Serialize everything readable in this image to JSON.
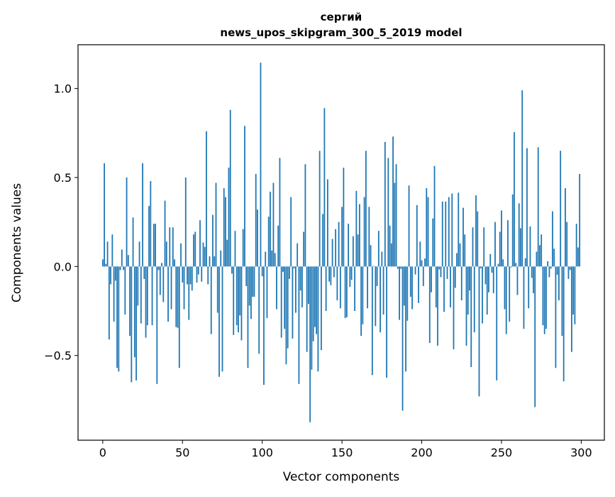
{
  "chart_data": {
    "type": "bar",
    "title": [
      "сергий",
      "news_upos_skipgram_300_5_2019 model"
    ],
    "xlabel": "Vector components",
    "ylabel": "Components values",
    "xlim": [
      -15.5,
      314.5
    ],
    "ylim": [
      -0.976,
      1.246
    ],
    "xticks": [
      0,
      50,
      100,
      150,
      200,
      250,
      300
    ],
    "xtick_labels": [
      "0",
      "50",
      "100",
      "150",
      "200",
      "250",
      "300"
    ],
    "yticks": [
      -0.5,
      0.0,
      0.5,
      1.0
    ],
    "ytick_labels": [
      "−0.5",
      "0.0",
      "0.5",
      "1.0"
    ],
    "grid": false,
    "bar_color": "#1f77b4",
    "values": [
      0.04,
      0.58,
      0.015,
      0.14,
      -0.41,
      -0.1,
      0.18,
      -0.31,
      -0.08,
      -0.57,
      -0.59,
      -0.02,
      0.095,
      -0.02,
      -0.27,
      0.5,
      0.064,
      -0.39,
      -0.65,
      0.275,
      -0.51,
      -0.64,
      -0.22,
      0.14,
      -0.32,
      0.58,
      -0.07,
      -0.4,
      -0.33,
      0.34,
      0.48,
      -0.33,
      0.24,
      0.24,
      -0.66,
      -0.02,
      -0.16,
      0.02,
      -0.2,
      0.37,
      0.14,
      -0.31,
      0.22,
      -0.24,
      0.22,
      0.04,
      -0.34,
      -0.345,
      -0.57,
      0.13,
      -0.09,
      -0.24,
      0.5,
      -0.1,
      -0.3,
      -0.1,
      -0.135,
      0.18,
      0.195,
      -0.09,
      -0.045,
      0.26,
      -0.085,
      0.135,
      0.11,
      0.76,
      -0.1,
      0.057,
      -0.38,
      0.29,
      0.057,
      0.47,
      -0.26,
      -0.62,
      0.09,
      -0.59,
      0.44,
      0.39,
      0.15,
      0.555,
      0.88,
      -0.04,
      -0.385,
      0.2,
      -0.33,
      -0.37,
      -0.275,
      -0.415,
      0.21,
      0.79,
      -0.11,
      -0.57,
      -0.22,
      -0.295,
      -0.17,
      -0.17,
      0.52,
      0.32,
      -0.49,
      1.145,
      -0.055,
      -0.665,
      0.083,
      -0.29,
      0.28,
      0.42,
      0.09,
      0.47,
      0.075,
      -0.24,
      0.23,
      0.61,
      -0.4,
      -0.03,
      -0.35,
      -0.55,
      -0.46,
      -0.07,
      0.39,
      -0.405,
      -0.01,
      -0.26,
      0.13,
      -0.66,
      -0.135,
      -0.23,
      0.195,
      0.575,
      -0.48,
      -0.21,
      -0.875,
      -0.58,
      -0.42,
      -0.34,
      -0.38,
      -0.59,
      0.65,
      -0.47,
      0.295,
      0.89,
      -0.25,
      0.49,
      -0.085,
      -0.105,
      0.155,
      -0.06,
      0.21,
      -0.19,
      0.25,
      -0.235,
      0.335,
      0.555,
      -0.29,
      -0.285,
      0.24,
      -0.115,
      -0.075,
      0.17,
      -0.25,
      0.425,
      0.18,
      0.35,
      -0.39,
      -0.325,
      0.39,
      0.65,
      -0.235,
      0.335,
      0.12,
      -0.61,
      0.003,
      -0.335,
      -0.11,
      0.2,
      -0.37,
      0.083,
      -0.27,
      0.7,
      -0.625,
      0.61,
      0.23,
      0.13,
      0.73,
      0.47,
      0.575,
      -0.013,
      -0.3,
      -0.013,
      -0.81,
      -0.22,
      -0.59,
      -0.305,
      0.455,
      -0.17,
      -0.24,
      0.0,
      -0.045,
      0.345,
      -0.205,
      0.14,
      0.035,
      -0.11,
      0.045,
      0.44,
      0.39,
      -0.43,
      -0.145,
      0.27,
      0.565,
      -0.23,
      -0.445,
      -0.016,
      -0.06,
      0.365,
      -0.255,
      0.365,
      -0.07,
      0.39,
      -0.23,
      0.41,
      -0.465,
      -0.12,
      0.075,
      0.415,
      0.13,
      -0.19,
      0.33,
      0.18,
      -0.445,
      -0.27,
      -0.135,
      -0.565,
      0.22,
      -0.37,
      0.4,
      0.31,
      -0.73,
      -0.01,
      -0.32,
      0.22,
      -0.1,
      -0.27,
      -0.145,
      0.07,
      -0.035,
      -0.15,
      0.25,
      -0.64,
      0.015,
      0.195,
      0.315,
      0.04,
      -0.24,
      -0.38,
      0.26,
      -0.31,
      -0.005,
      0.405,
      0.755,
      0.02,
      -0.16,
      0.355,
      0.215,
      0.99,
      -0.35,
      0.047,
      0.665,
      -0.235,
      0.225,
      -0.064,
      -0.15,
      -0.79,
      0.083,
      0.67,
      0.12,
      0.18,
      -0.33,
      -0.38,
      -0.35,
      0.03,
      -0.06,
      -0.012,
      0.31,
      0.1,
      -0.57,
      -0.047,
      -0.19,
      0.65,
      -0.39,
      -0.645,
      0.44,
      0.25,
      -0.07,
      -0.02,
      -0.48,
      -0.27,
      -0.325,
      0.24,
      0.107,
      0.52
    ]
  }
}
